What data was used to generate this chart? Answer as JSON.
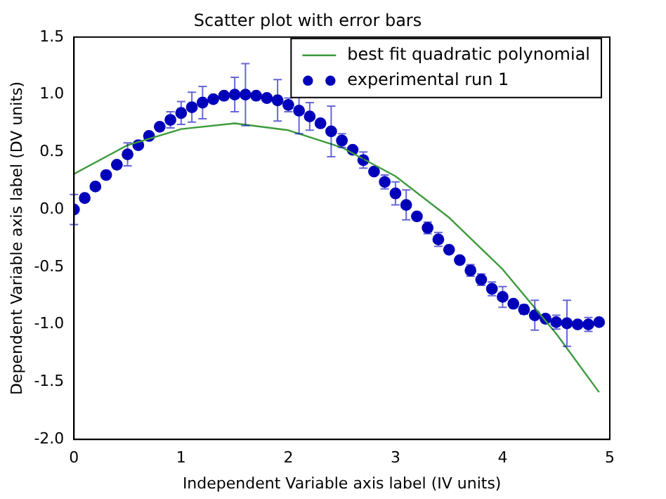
{
  "chart_data": {
    "type": "scatter",
    "title": "Scatter plot with error bars",
    "xlabel": "Independent Variable axis label (IV units)",
    "ylabel": "Dependent Variable axis label (DV units)",
    "xlim": [
      0,
      5
    ],
    "xticks": [
      0,
      1,
      2,
      3,
      4,
      5
    ],
    "ylim": [
      -2,
      1.5
    ],
    "yticks": [
      {
        "value": -2,
        "label": "-2.0"
      },
      {
        "value": -1.5,
        "label": "-1.5"
      },
      {
        "value": -1,
        "label": "-1.0"
      },
      {
        "value": -0.5,
        "label": "-0.5"
      },
      {
        "value": 0,
        "label": "0.0"
      },
      {
        "value": 0.5,
        "label": "0.5"
      },
      {
        "value": 1,
        "label": "1.0"
      },
      {
        "value": 1.5,
        "label": "1.5"
      }
    ],
    "legend": "top right",
    "grid": false,
    "series": [
      {
        "name": "best fit quadratic polynomial",
        "type": "line",
        "color": "#3c9a3c",
        "marker": "none",
        "x": [
          0,
          0.5,
          1,
          1.5,
          2,
          2.5,
          3,
          3.5,
          4,
          4.5,
          4.9
        ],
        "values": [
          0.31,
          0.56,
          0.7,
          0.75,
          0.69,
          0.54,
          0.29,
          -0.07,
          -0.52,
          -1.08,
          -1.59
        ]
      },
      {
        "name": "experimental run 1",
        "type": "scatter",
        "color": "#0000bb",
        "marker": "circle",
        "x": [
          0,
          0.1,
          0.2,
          0.3,
          0.4,
          0.5,
          0.6,
          0.7,
          0.8,
          0.9,
          1,
          1.1,
          1.2,
          1.3,
          1.4,
          1.5,
          1.6,
          1.7,
          1.8,
          1.9,
          2,
          2.1,
          2.2,
          2.3,
          2.4,
          2.5,
          2.6,
          2.7,
          2.8,
          2.9,
          3,
          3.1,
          3.2,
          3.3,
          3.4,
          3.5,
          3.6,
          3.7,
          3.8,
          3.9,
          4,
          4.1,
          4.2,
          4.3,
          4.4,
          4.5,
          4.6,
          4.7,
          4.8,
          4.9
        ],
        "values": [
          0,
          0.1,
          0.2,
          0.3,
          0.39,
          0.48,
          0.56,
          0.64,
          0.72,
          0.78,
          0.84,
          0.89,
          0.93,
          0.96,
          0.99,
          1,
          1,
          0.99,
          0.97,
          0.95,
          0.91,
          0.86,
          0.81,
          0.75,
          0.68,
          0.6,
          0.52,
          0.43,
          0.33,
          0.24,
          0.14,
          0.04,
          -0.06,
          -0.16,
          -0.26,
          -0.35,
          -0.44,
          -0.53,
          -0.61,
          -0.69,
          -0.76,
          -0.82,
          -0.87,
          -0.92,
          -0.95,
          -0.98,
          -0.99,
          -1,
          -1,
          -0.98
        ],
        "errors": [
          0.13,
          null,
          null,
          null,
          null,
          0.1,
          null,
          null,
          null,
          0.07,
          0.1,
          0.13,
          0.14,
          null,
          null,
          0.15,
          0.27,
          null,
          null,
          0.18,
          0.06,
          0.2,
          0.12,
          null,
          0.22,
          0.06,
          null,
          0.07,
          null,
          0.06,
          0.1,
          0.13,
          null,
          0.05,
          0.06,
          null,
          null,
          0.05,
          0.05,
          0.06,
          0.09,
          null,
          0.04,
          0.13,
          null,
          0.06,
          0.2,
          null,
          0.06,
          null
        ]
      }
    ]
  }
}
